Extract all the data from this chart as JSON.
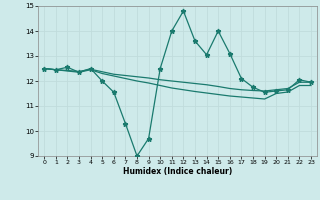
{
  "xlabel": "Humidex (Indice chaleur)",
  "background_color": "#ceeaea",
  "grid_color": "#b0d4d4",
  "line_color": "#1a7a6e",
  "xlim": [
    -0.5,
    23.5
  ],
  "ylim": [
    9,
    15
  ],
  "yticks": [
    9,
    10,
    11,
    12,
    13,
    14,
    15
  ],
  "xticks": [
    0,
    1,
    2,
    3,
    4,
    5,
    6,
    7,
    8,
    9,
    10,
    11,
    12,
    13,
    14,
    15,
    16,
    17,
    18,
    19,
    20,
    21,
    22,
    23
  ],
  "line1_x": [
    0,
    1,
    2,
    3,
    4,
    5,
    6,
    7,
    8,
    9,
    10,
    11,
    12,
    13,
    14,
    15,
    16,
    17,
    18,
    19,
    20,
    21,
    22,
    23
  ],
  "line1_y": [
    12.5,
    12.45,
    12.55,
    12.35,
    12.5,
    12.0,
    11.55,
    10.3,
    9.0,
    9.7,
    12.5,
    14.0,
    14.8,
    13.6,
    13.05,
    14.0,
    13.1,
    12.1,
    11.75,
    11.55,
    11.6,
    11.65,
    12.05,
    11.95
  ],
  "line2_x": [
    0,
    1,
    2,
    3,
    4,
    5,
    6,
    7,
    8,
    9,
    10,
    11,
    12,
    13,
    14,
    15,
    16,
    17,
    18,
    19,
    20,
    21,
    22,
    23
  ],
  "line2_y": [
    12.5,
    12.45,
    12.42,
    12.38,
    12.47,
    12.37,
    12.27,
    12.22,
    12.17,
    12.12,
    12.05,
    12.0,
    11.95,
    11.9,
    11.85,
    11.78,
    11.7,
    11.65,
    11.62,
    11.6,
    11.65,
    11.7,
    11.95,
    11.95
  ],
  "line3_x": [
    0,
    1,
    2,
    3,
    4,
    5,
    6,
    7,
    8,
    9,
    10,
    11,
    12,
    13,
    14,
    15,
    16,
    17,
    18,
    19,
    20,
    21,
    22,
    23
  ],
  "line3_y": [
    12.5,
    12.45,
    12.4,
    12.35,
    12.45,
    12.3,
    12.2,
    12.1,
    12.0,
    11.92,
    11.82,
    11.72,
    11.65,
    11.58,
    11.52,
    11.46,
    11.4,
    11.36,
    11.32,
    11.28,
    11.5,
    11.56,
    11.82,
    11.82
  ]
}
